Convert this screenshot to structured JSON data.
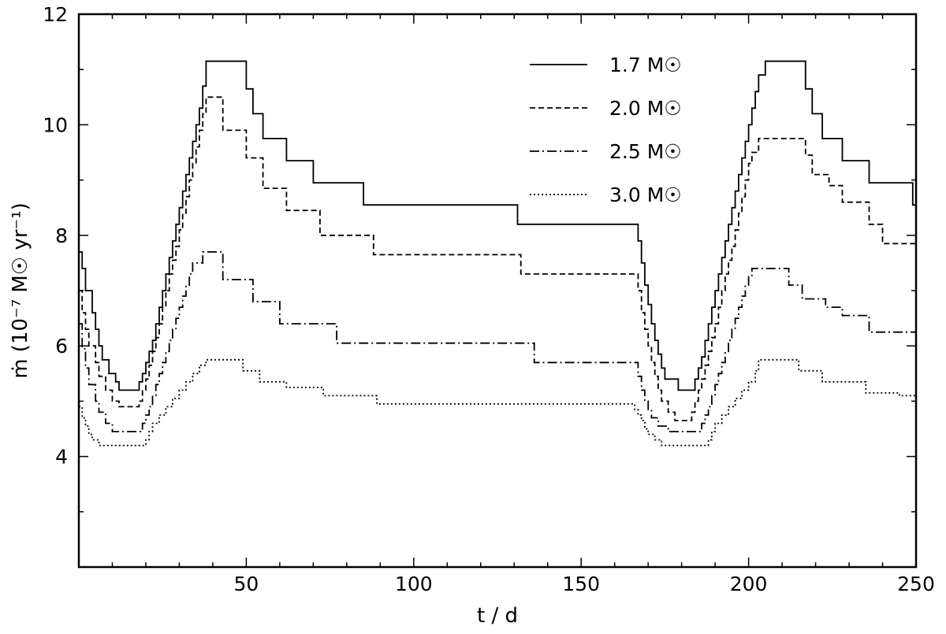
{
  "chart_data": {
    "type": "line",
    "title": "",
    "xlabel": "t / d",
    "ylabel": "ṁ (10⁻⁷ M☉ yr⁻¹)",
    "xlim": [
      0,
      250
    ],
    "ylim": [
      2,
      12
    ],
    "x_ticks": [
      50,
      100,
      150,
      200,
      250
    ],
    "y_ticks": [
      4,
      6,
      8,
      10,
      12
    ],
    "grid": false,
    "legend_position": "top-right",
    "line_color": "#000000",
    "series": [
      {
        "name": "1.7 M☉",
        "style": "solid",
        "points": [
          [
            0,
            7.7
          ],
          [
            1,
            7.4
          ],
          [
            2,
            7.0
          ],
          [
            4,
            6.6
          ],
          [
            5,
            6.3
          ],
          [
            6,
            6.0
          ],
          [
            7,
            5.75
          ],
          [
            9,
            5.5
          ],
          [
            11,
            5.35
          ],
          [
            12,
            5.2
          ],
          [
            18,
            5.35
          ],
          [
            19,
            5.5
          ],
          [
            20,
            5.7
          ],
          [
            21,
            5.9
          ],
          [
            22,
            6.1
          ],
          [
            23,
            6.4
          ],
          [
            24,
            6.7
          ],
          [
            25,
            7.0
          ],
          [
            26,
            7.3
          ],
          [
            27,
            7.6
          ],
          [
            28,
            7.9
          ],
          [
            29,
            8.2
          ],
          [
            30,
            8.5
          ],
          [
            31,
            8.8
          ],
          [
            32,
            9.1
          ],
          [
            33,
            9.4
          ],
          [
            34,
            9.7
          ],
          [
            35,
            10.0
          ],
          [
            36,
            10.3
          ],
          [
            37,
            10.7
          ],
          [
            38,
            11.15
          ],
          [
            50,
            10.65
          ],
          [
            52,
            10.2
          ],
          [
            55,
            9.75
          ],
          [
            62,
            9.35
          ],
          [
            70,
            8.95
          ],
          [
            85,
            8.55
          ],
          [
            131,
            8.2
          ],
          [
            167,
            7.9
          ],
          [
            168,
            7.5
          ],
          [
            169,
            7.1
          ],
          [
            170,
            6.75
          ],
          [
            171,
            6.4
          ],
          [
            172,
            6.1
          ],
          [
            173,
            5.85
          ],
          [
            174,
            5.6
          ],
          [
            175,
            5.4
          ],
          [
            179,
            5.2
          ],
          [
            184,
            5.4
          ],
          [
            185,
            5.6
          ],
          [
            186,
            5.8
          ],
          [
            187,
            6.1
          ],
          [
            188,
            6.4
          ],
          [
            189,
            6.7
          ],
          [
            190,
            7.0
          ],
          [
            191,
            7.3
          ],
          [
            192,
            7.6
          ],
          [
            193,
            7.9
          ],
          [
            194,
            8.2
          ],
          [
            195,
            8.5
          ],
          [
            196,
            8.8
          ],
          [
            197,
            9.1
          ],
          [
            198,
            9.4
          ],
          [
            199,
            9.7
          ],
          [
            200,
            10.0
          ],
          [
            201,
            10.3
          ],
          [
            202,
            10.6
          ],
          [
            203,
            10.9
          ],
          [
            205,
            11.15
          ],
          [
            217,
            10.65
          ],
          [
            219,
            10.2
          ],
          [
            222,
            9.75
          ],
          [
            228,
            9.35
          ],
          [
            236,
            8.95
          ],
          [
            249,
            8.55
          ],
          [
            250,
            8.55
          ]
        ]
      },
      {
        "name": "2.0 M☉",
        "style": "dashed",
        "points": [
          [
            0,
            7.0
          ],
          [
            1,
            6.6
          ],
          [
            2,
            6.3
          ],
          [
            3,
            6.0
          ],
          [
            5,
            5.7
          ],
          [
            6,
            5.45
          ],
          [
            8,
            5.2
          ],
          [
            10,
            5.0
          ],
          [
            12,
            4.9
          ],
          [
            18,
            5.0
          ],
          [
            19,
            5.2
          ],
          [
            20,
            5.4
          ],
          [
            21,
            5.65
          ],
          [
            22,
            5.9
          ],
          [
            23,
            6.15
          ],
          [
            24,
            6.4
          ],
          [
            25,
            6.7
          ],
          [
            26,
            7.0
          ],
          [
            27,
            7.3
          ],
          [
            28,
            7.55
          ],
          [
            29,
            7.8
          ],
          [
            30,
            8.1
          ],
          [
            31,
            8.4
          ],
          [
            32,
            8.7
          ],
          [
            33,
            9.0
          ],
          [
            34,
            9.3
          ],
          [
            35,
            9.6
          ],
          [
            36,
            9.9
          ],
          [
            37,
            10.2
          ],
          [
            38,
            10.5
          ],
          [
            43,
            9.9
          ],
          [
            50,
            9.4
          ],
          [
            55,
            8.85
          ],
          [
            62,
            8.45
          ],
          [
            72,
            8.0
          ],
          [
            88,
            7.65
          ],
          [
            132,
            7.3
          ],
          [
            167,
            7.0
          ],
          [
            168,
            6.6
          ],
          [
            169,
            6.3
          ],
          [
            170,
            6.0
          ],
          [
            171,
            5.7
          ],
          [
            172,
            5.45
          ],
          [
            173,
            5.2
          ],
          [
            174,
            5.0
          ],
          [
            176,
            4.8
          ],
          [
            178,
            4.65
          ],
          [
            183,
            4.8
          ],
          [
            184,
            5.0
          ],
          [
            185,
            5.2
          ],
          [
            186,
            5.4
          ],
          [
            187,
            5.65
          ],
          [
            188,
            5.9
          ],
          [
            189,
            6.15
          ],
          [
            190,
            6.4
          ],
          [
            191,
            6.7
          ],
          [
            192,
            7.0
          ],
          [
            193,
            7.3
          ],
          [
            194,
            7.55
          ],
          [
            195,
            7.8
          ],
          [
            196,
            8.1
          ],
          [
            197,
            8.4
          ],
          [
            198,
            8.7
          ],
          [
            199,
            9.0
          ],
          [
            200,
            9.3
          ],
          [
            201,
            9.5
          ],
          [
            203,
            9.75
          ],
          [
            217,
            9.45
          ],
          [
            219,
            9.1
          ],
          [
            224,
            8.9
          ],
          [
            228,
            8.6
          ],
          [
            236,
            8.2
          ],
          [
            240,
            7.85
          ],
          [
            250,
            7.85
          ]
        ]
      },
      {
        "name": "2.5 M☉",
        "style": "dashdot",
        "points": [
          [
            0,
            6.4
          ],
          [
            1,
            5.95
          ],
          [
            2,
            5.6
          ],
          [
            3,
            5.3
          ],
          [
            5,
            5.0
          ],
          [
            6,
            4.8
          ],
          [
            8,
            4.6
          ],
          [
            10,
            4.45
          ],
          [
            19,
            4.6
          ],
          [
            20,
            4.75
          ],
          [
            21,
            4.9
          ],
          [
            22,
            5.1
          ],
          [
            23,
            5.3
          ],
          [
            24,
            5.5
          ],
          [
            25,
            5.7
          ],
          [
            26,
            5.9
          ],
          [
            27,
            6.1
          ],
          [
            28,
            6.3
          ],
          [
            29,
            6.5
          ],
          [
            30,
            6.7
          ],
          [
            31,
            6.9
          ],
          [
            32,
            7.1
          ],
          [
            33,
            7.3
          ],
          [
            34,
            7.5
          ],
          [
            37,
            7.7
          ],
          [
            43,
            7.2
          ],
          [
            52,
            6.8
          ],
          [
            60,
            6.4
          ],
          [
            77,
            6.05
          ],
          [
            136,
            5.7
          ],
          [
            167,
            5.45
          ],
          [
            168,
            5.2
          ],
          [
            169,
            5.0
          ],
          [
            170,
            4.85
          ],
          [
            171,
            4.7
          ],
          [
            173,
            4.55
          ],
          [
            176,
            4.45
          ],
          [
            186,
            4.6
          ],
          [
            187,
            4.75
          ],
          [
            188,
            4.9
          ],
          [
            189,
            5.1
          ],
          [
            190,
            5.3
          ],
          [
            191,
            5.5
          ],
          [
            192,
            5.7
          ],
          [
            193,
            5.9
          ],
          [
            194,
            6.1
          ],
          [
            195,
            6.3
          ],
          [
            196,
            6.5
          ],
          [
            197,
            6.7
          ],
          [
            198,
            6.9
          ],
          [
            199,
            7.1
          ],
          [
            200,
            7.25
          ],
          [
            201,
            7.4
          ],
          [
            212,
            7.1
          ],
          [
            216,
            6.85
          ],
          [
            223,
            6.7
          ],
          [
            228,
            6.55
          ],
          [
            236,
            6.25
          ],
          [
            245,
            6.25
          ],
          [
            250,
            6.2
          ]
        ]
      },
      {
        "name": "3.0 M☉",
        "style": "dotted",
        "points": [
          [
            0,
            4.9
          ],
          [
            1,
            4.7
          ],
          [
            2,
            4.55
          ],
          [
            3,
            4.4
          ],
          [
            4,
            4.3
          ],
          [
            6,
            4.2
          ],
          [
            20,
            4.3
          ],
          [
            21,
            4.45
          ],
          [
            22,
            4.6
          ],
          [
            24,
            4.75
          ],
          [
            26,
            4.9
          ],
          [
            28,
            5.05
          ],
          [
            30,
            5.2
          ],
          [
            32,
            5.35
          ],
          [
            34,
            5.5
          ],
          [
            36,
            5.65
          ],
          [
            38,
            5.75
          ],
          [
            49,
            5.55
          ],
          [
            54,
            5.35
          ],
          [
            62,
            5.25
          ],
          [
            73,
            5.1
          ],
          [
            89,
            4.95
          ],
          [
            166,
            4.85
          ],
          [
            167,
            4.75
          ],
          [
            168,
            4.65
          ],
          [
            169,
            4.5
          ],
          [
            170,
            4.4
          ],
          [
            172,
            4.3
          ],
          [
            174,
            4.2
          ],
          [
            188,
            4.3
          ],
          [
            189,
            4.45
          ],
          [
            190,
            4.6
          ],
          [
            192,
            4.75
          ],
          [
            194,
            4.9
          ],
          [
            196,
            5.05
          ],
          [
            198,
            5.2
          ],
          [
            200,
            5.35
          ],
          [
            202,
            5.55
          ],
          [
            203,
            5.75
          ],
          [
            215,
            5.55
          ],
          [
            222,
            5.35
          ],
          [
            235,
            5.15
          ],
          [
            245,
            5.1
          ],
          [
            250,
            5.1
          ]
        ]
      }
    ]
  }
}
